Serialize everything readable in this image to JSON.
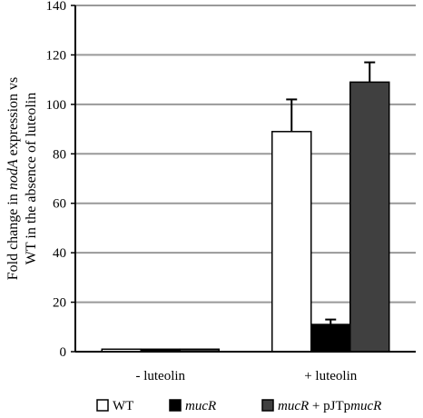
{
  "chart_data": {
    "type": "bar",
    "categories": [
      "- luteolin",
      "+ luteolin"
    ],
    "series": [
      {
        "name": "WT",
        "name_parts": [
          {
            "text": "WT",
            "italic": false
          }
        ],
        "values": [
          1,
          89
        ],
        "errors": [
          0,
          13
        ],
        "color": "#ffffff"
      },
      {
        "name": "mucR",
        "name_parts": [
          {
            "text": "mucR",
            "italic": true
          }
        ],
        "values": [
          1,
          11
        ],
        "errors": [
          0,
          2
        ],
        "color": "#000000"
      },
      {
        "name": "mucR + pJTpmucR",
        "name_parts": [
          {
            "text": "mucR",
            "italic": true
          },
          {
            "text": " + pJTp",
            "italic": false
          },
          {
            "text": "mucR",
            "italic": true
          }
        ],
        "values": [
          1,
          109
        ],
        "errors": [
          0,
          8
        ],
        "color": "#404040"
      }
    ],
    "ylabel_line1_parts": [
      {
        "text": "Fold change in ",
        "italic": false
      },
      {
        "text": "nodA",
        "italic": true
      },
      {
        "text": " expression vs",
        "italic": false
      }
    ],
    "ylabel_line2": "WT in the absence of luteolin",
    "ylim": [
      0,
      140
    ],
    "yticks": [
      0,
      20,
      40,
      60,
      80,
      100,
      120,
      140
    ],
    "grid": true,
    "legend_position": "bottom",
    "gridline_color": "#999999",
    "axis_color": "#000000"
  }
}
